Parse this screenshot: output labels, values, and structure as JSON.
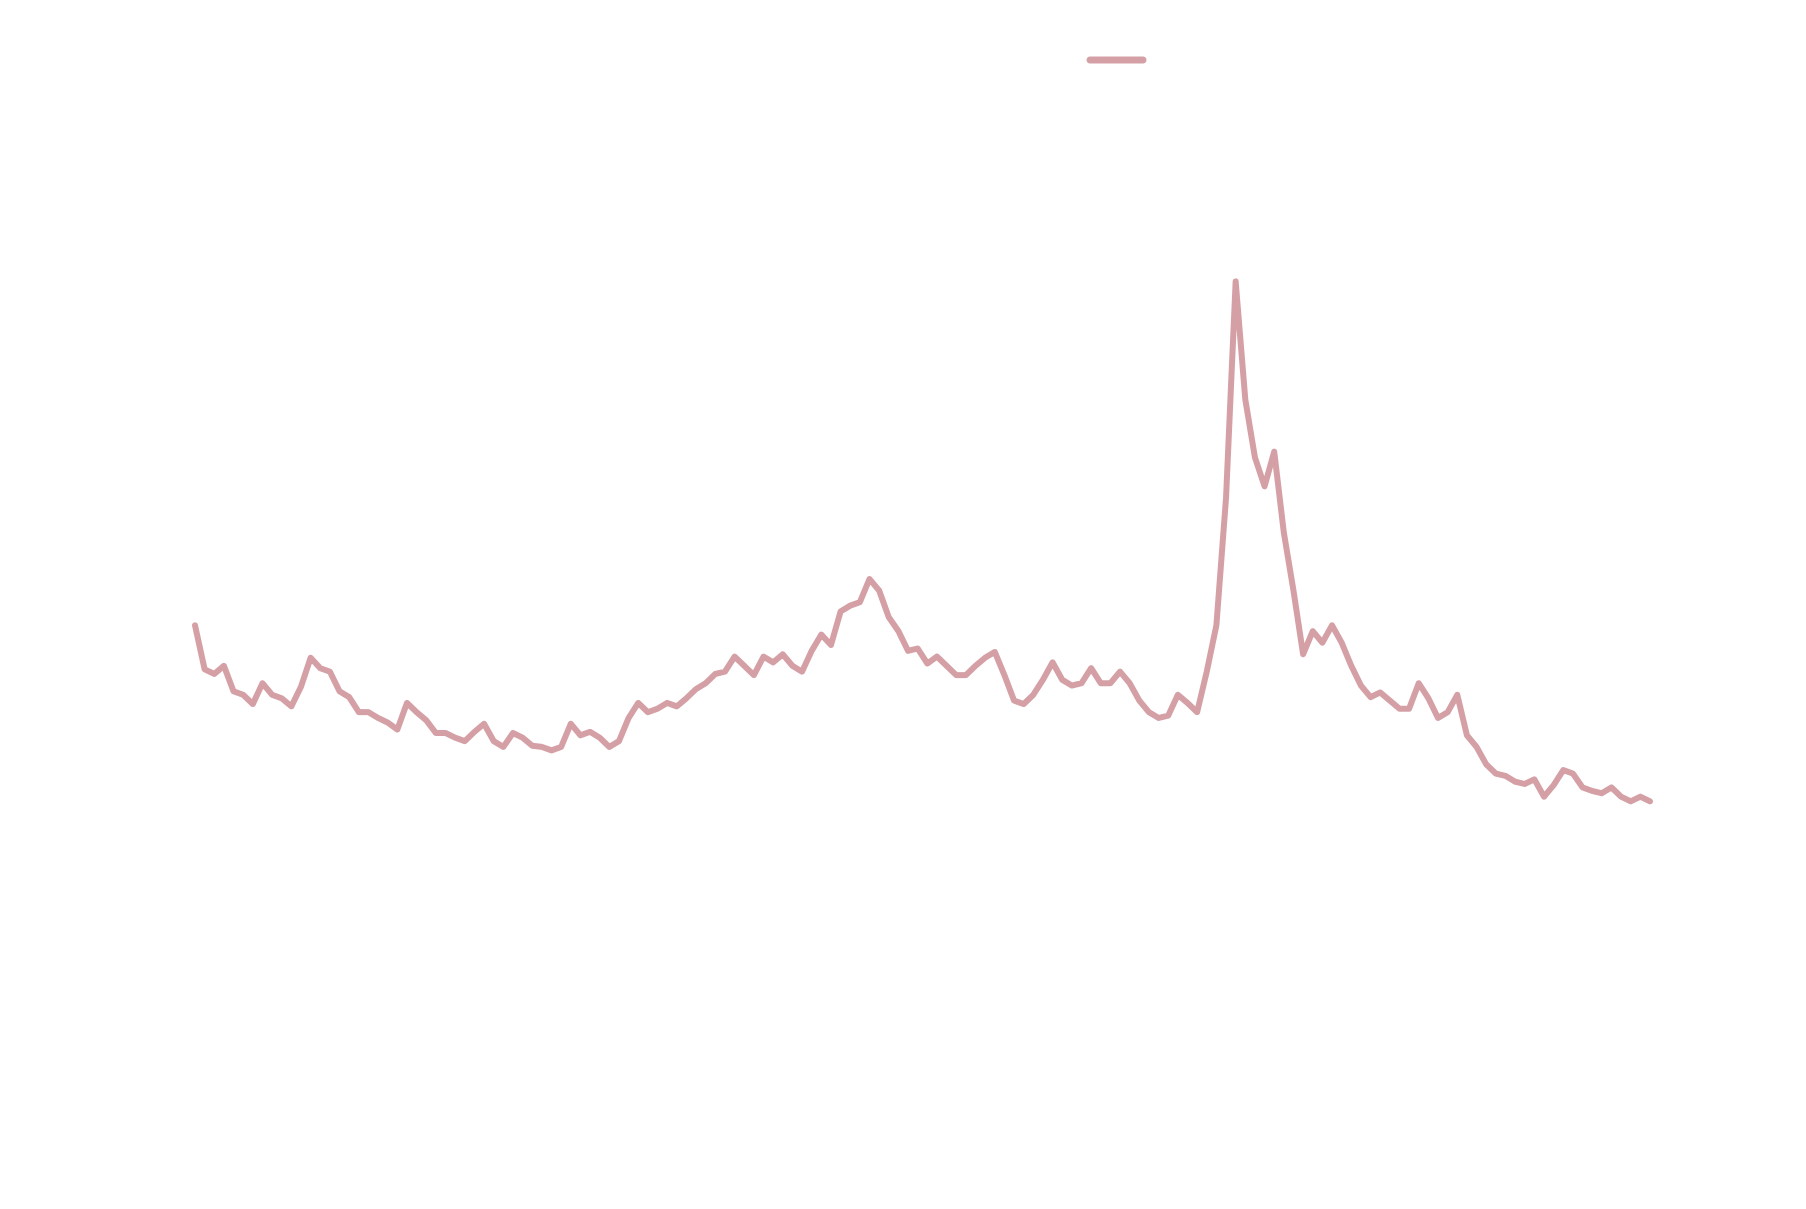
{
  "chart_data": {
    "type": "line",
    "ylim": [
      0,
      100
    ],
    "series": [
      {
        "color": "#d4a0a6",
        "values": [
          46,
          42.2,
          41.8,
          42.5,
          40.3,
          40,
          39.2,
          41,
          40,
          39.7,
          39,
          40.7,
          43.2,
          42.3,
          42,
          40.3,
          39.8,
          38.5,
          38.5,
          38,
          37.6,
          37,
          39.3,
          38.5,
          37.8,
          36.7,
          36.7,
          36.3,
          36,
          36.8,
          37.5,
          36,
          35.5,
          36.7,
          36.3,
          35.6,
          35.5,
          35.2,
          35.5,
          37.5,
          36.5,
          36.8,
          36.3,
          35.5,
          36,
          38,
          39.3,
          38.5,
          38.8,
          39.3,
          39,
          39.7,
          40.5,
          41,
          41.8,
          42,
          43.3,
          42.5,
          41.7,
          43.3,
          42.8,
          43.5,
          42.5,
          42,
          43.8,
          45.2,
          44.3,
          47.2,
          47.7,
          48,
          50,
          49,
          46.7,
          45.5,
          43.8,
          44,
          42.7,
          43.3,
          42.5,
          41.7,
          41.7,
          42.5,
          43.2,
          43.7,
          41.7,
          39.5,
          39.2,
          40,
          41.3,
          42.8,
          41.3,
          40.8,
          41,
          42.3,
          41,
          41,
          42,
          41,
          39.5,
          38.5,
          38,
          38.2,
          40,
          39.3,
          38.5,
          42,
          46,
          57,
          75.7,
          65.5,
          60.5,
          58,
          61,
          54,
          49,
          43.5,
          45.5,
          44.5,
          46,
          44.5,
          42.5,
          40.8,
          39.8,
          40.2,
          39.5,
          38.8,
          38.8,
          41,
          39.7,
          38,
          38.5,
          40,
          36.5,
          35.5,
          34,
          33.2,
          33,
          32.5,
          32.3,
          32.7,
          31.2,
          32.2,
          33.5,
          33.2,
          32,
          31.7,
          31.5,
          32,
          31.2,
          30.8,
          31.2,
          30.8
        ]
      }
    ],
    "legend": "top"
  }
}
